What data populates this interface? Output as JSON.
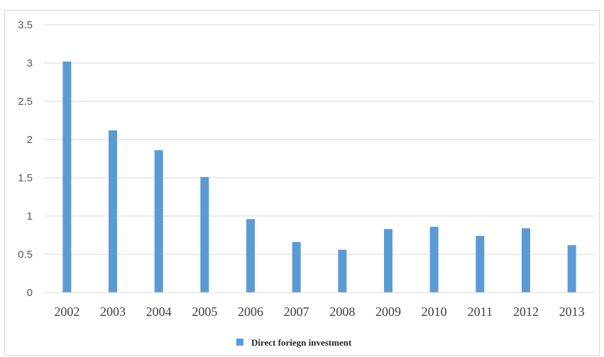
{
  "chart_data": {
    "type": "bar",
    "title": "",
    "xlabel": "",
    "ylabel": "",
    "categories": [
      "2002",
      "2003",
      "2004",
      "2005",
      "2006",
      "2007",
      "2008",
      "2009",
      "2010",
      "2011",
      "2012",
      "2013"
    ],
    "series": [
      {
        "name": "Direct foriegn investment",
        "color": "#5b9bd5",
        "values": [
          3.02,
          2.12,
          1.86,
          1.51,
          0.96,
          0.66,
          0.56,
          0.83,
          0.86,
          0.74,
          0.84,
          0.62
        ]
      }
    ],
    "ylim": [
      0,
      3.5
    ],
    "yticks": [
      "0",
      "0.5",
      "1",
      "1.5",
      "2",
      "2.5",
      "3",
      "3.5"
    ],
    "grid": true,
    "legend_position": "bottom"
  }
}
